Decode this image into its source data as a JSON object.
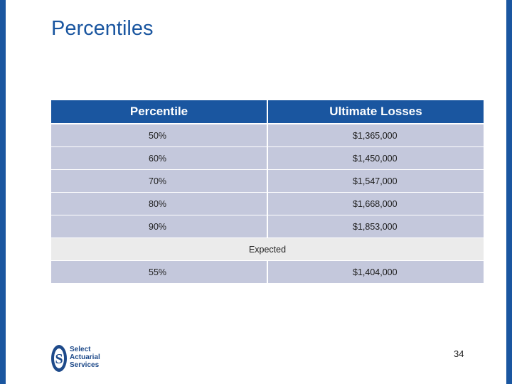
{
  "slide": {
    "title": "Percentiles",
    "page_number": "34"
  },
  "table": {
    "headers": [
      "Percentile",
      "Ultimate Losses"
    ],
    "rows": [
      {
        "percentile": "50%",
        "losses": "$1,365,000"
      },
      {
        "percentile": "60%",
        "losses": "$1,450,000"
      },
      {
        "percentile": "70%",
        "losses": "$1,547,000"
      },
      {
        "percentile": "80%",
        "losses": "$1,668,000"
      },
      {
        "percentile": "90%",
        "losses": "$1,853,000"
      }
    ],
    "expected_label": "Expected",
    "expected_row": {
      "percentile": "55%",
      "losses": "$1,404,000"
    }
  },
  "logo": {
    "lines": [
      "Select",
      "Actuarial",
      "Services"
    ],
    "letter": "S"
  },
  "colors": {
    "accent": "#1a56a0",
    "row_bg": "#c4c8dc",
    "expected_bg": "#ebebeb"
  }
}
